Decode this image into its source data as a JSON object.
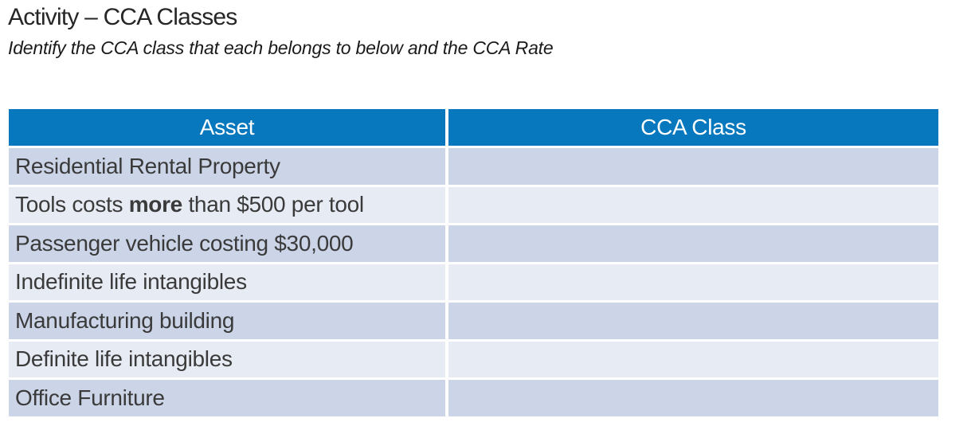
{
  "page": {
    "title": "Activity – CCA Classes",
    "subtitle": "Identify the CCA class that each belongs to below and the CCA Rate"
  },
  "colors": {
    "header_bg": "#0878BE",
    "header_text": "#FFFFFF",
    "row_dark": "#CBD5E7",
    "row_light": "#E7EBF4",
    "body_text": "#3A3A3A"
  },
  "table": {
    "columns": [
      {
        "label": "Asset"
      },
      {
        "label": "CCA Class"
      }
    ],
    "rows": [
      {
        "asset": "Residential Rental Property",
        "cca_class": ""
      },
      {
        "asset_prefix": "Tools costs ",
        "asset_bold": "more",
        "asset_suffix": " than $500 per tool",
        "cca_class": ""
      },
      {
        "asset": "Passenger vehicle costing $30,000",
        "cca_class": ""
      },
      {
        "asset": "Indefinite life intangibles",
        "cca_class": ""
      },
      {
        "asset": "Manufacturing building",
        "cca_class": ""
      },
      {
        "asset": "Definite life intangibles",
        "cca_class": ""
      },
      {
        "asset": "Office Furniture",
        "cca_class": ""
      }
    ]
  }
}
